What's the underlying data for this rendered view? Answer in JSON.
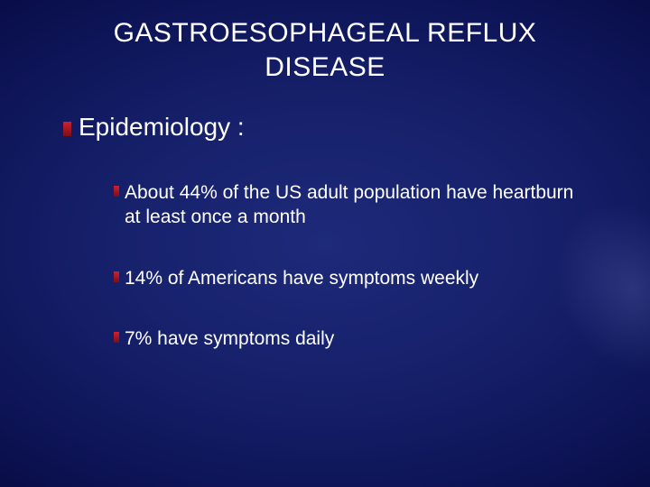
{
  "slide": {
    "background": {
      "type": "radial-gradient",
      "center_color": "#1e2a7a",
      "edge_color": "#020528"
    },
    "title": {
      "line1": "GASTROESOPHAGEAL REFLUX",
      "line2": "DISEASE",
      "fontsize": 30,
      "color": "#ffffff"
    },
    "section": {
      "label": "Epidemiology :",
      "fontsize": 28,
      "bullet_color_top": "#d02030",
      "bullet_color_bottom": "#7a0f18"
    },
    "items": [
      {
        "text": "About 44% of the US adult population have heartburn at least once a month"
      },
      {
        "text": "14% of Americans have symptoms weekly"
      },
      {
        "text": "7% have symptoms daily"
      }
    ],
    "item_style": {
      "fontsize": 21,
      "color": "#ffffff",
      "bullet_color_top": "#d02030",
      "bullet_color_bottom": "#7a0f18"
    }
  }
}
